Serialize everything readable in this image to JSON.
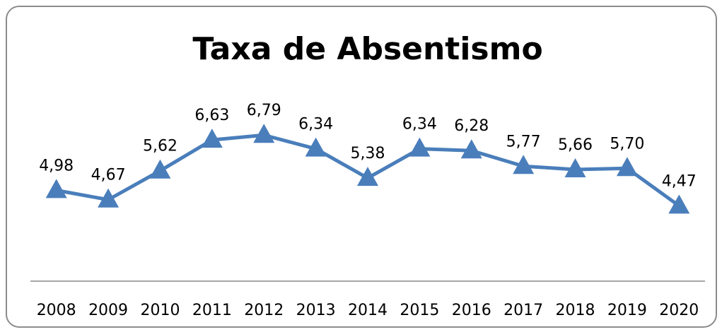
{
  "chart_data": {
    "type": "line",
    "title": "Taxa de Absentismo",
    "categories": [
      "2008",
      "2009",
      "2010",
      "2011",
      "2012",
      "2013",
      "2014",
      "2015",
      "2016",
      "2017",
      "2018",
      "2019",
      "2020"
    ],
    "series": [
      {
        "name": "Taxa de Absentismo",
        "color": "#4a7ebb",
        "values": [
          4.98,
          4.67,
          5.62,
          6.63,
          6.79,
          6.34,
          5.38,
          6.34,
          6.28,
          5.77,
          5.66,
          5.7,
          4.47
        ],
        "value_labels": [
          "4,98",
          "4,67",
          "5,62",
          "6,63",
          "6,79",
          "6,34",
          "5,38",
          "6,34",
          "6,28",
          "5,77",
          "5,66",
          "5,70",
          "4,47"
        ]
      }
    ],
    "ylim": [
      2,
      8
    ]
  }
}
